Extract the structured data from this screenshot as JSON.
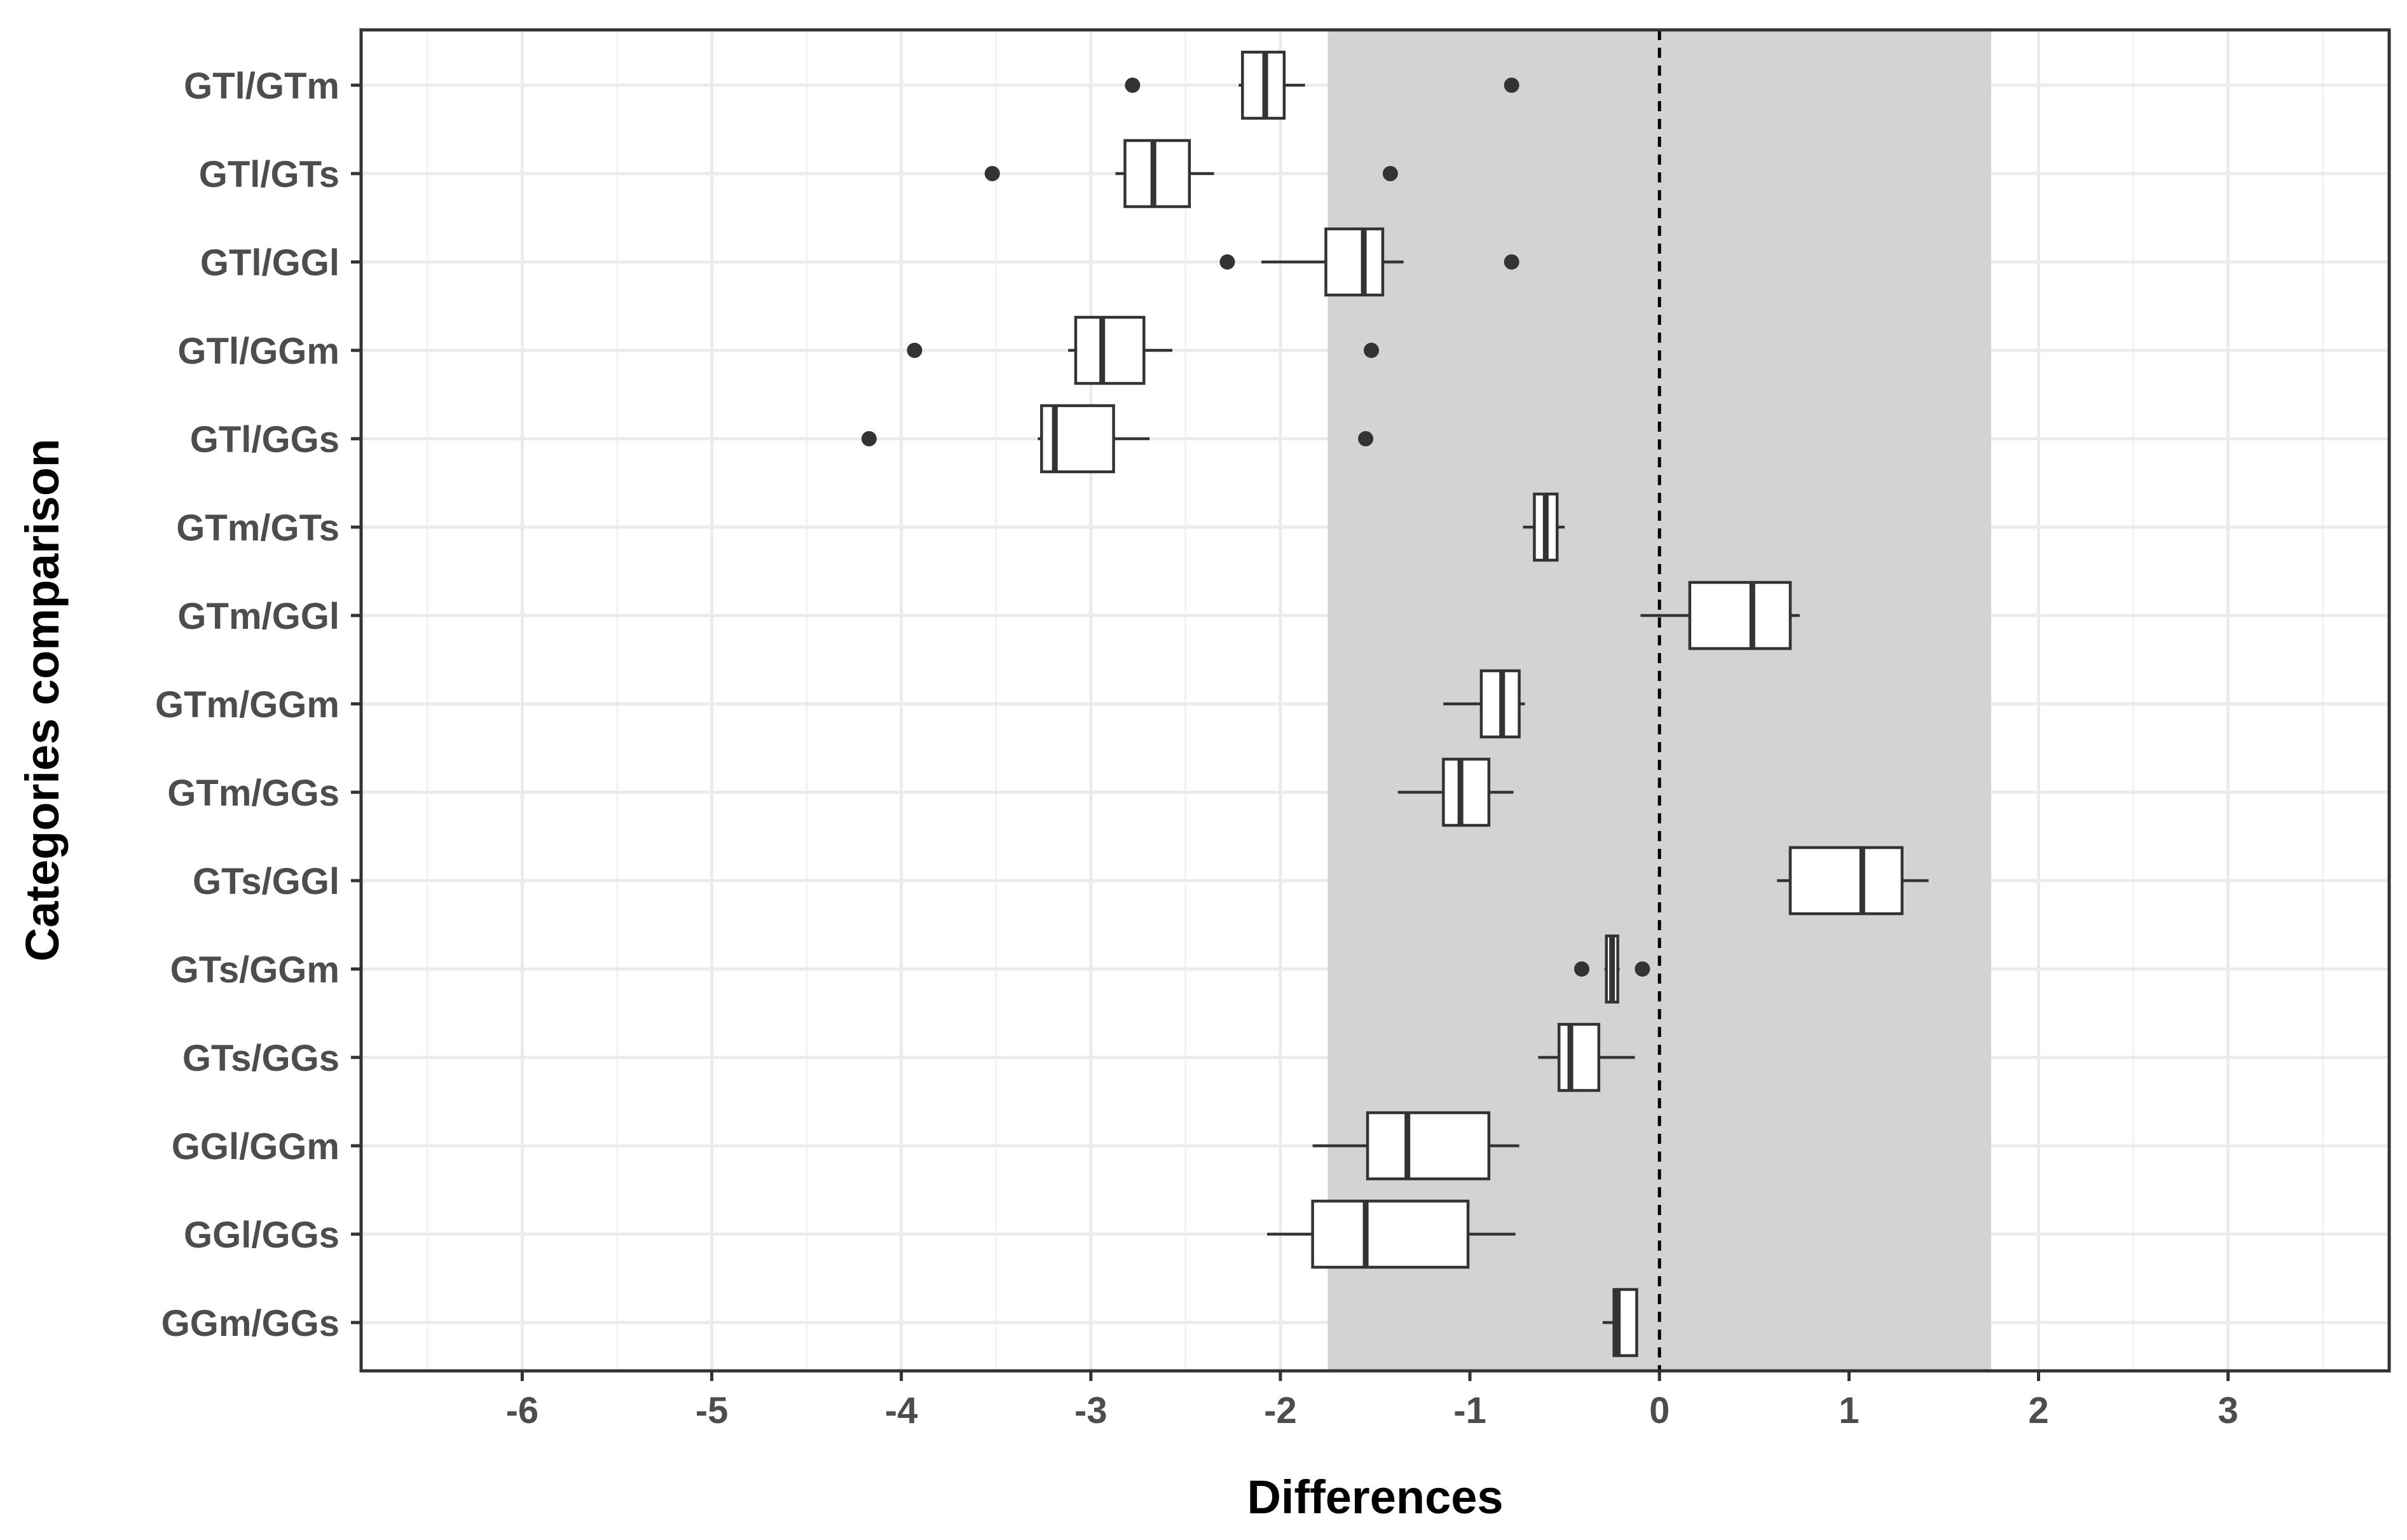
{
  "chart_data": {
    "type": "boxplot",
    "orientation": "horizontal",
    "xlabel": "Differences",
    "ylabel": "Categories comparison",
    "xlim": [
      -6.85,
      3.85
    ],
    "xticks": [
      -6,
      -5,
      -4,
      -3,
      -2,
      -1,
      0,
      1,
      2,
      3
    ],
    "grid": true,
    "shaded_region": {
      "from": -1.75,
      "to": 1.75,
      "color": "#d3d3d3"
    },
    "reference_line": {
      "x": 0,
      "style": "dashed"
    },
    "categories": [
      "GTl/GTm",
      "GTl/GTs",
      "GTl/GGl",
      "GTl/GGm",
      "GTl/GGs",
      "GTm/GTs",
      "GTm/GGl",
      "GTm/GGm",
      "GTm/GGs",
      "GTs/GGl",
      "GTs/GGm",
      "GTs/GGs",
      "GGl/GGm",
      "GGl/GGs",
      "GGm/GGs"
    ],
    "boxes": [
      {
        "label": "GTl/GTm",
        "whisker_low": -2.22,
        "q1": -2.2,
        "median": -2.08,
        "q3": -1.98,
        "whisker_high": -1.87,
        "outliers": [
          -2.78,
          -0.78
        ]
      },
      {
        "label": "GTl/GTs",
        "whisker_low": -2.87,
        "q1": -2.82,
        "median": -2.67,
        "q3": -2.48,
        "whisker_high": -2.35,
        "outliers": [
          -3.52,
          -1.42
        ]
      },
      {
        "label": "GTl/GGl",
        "whisker_low": -2.1,
        "q1": -1.76,
        "median": -1.56,
        "q3": -1.46,
        "whisker_high": -1.35,
        "outliers": [
          -2.28,
          -0.78
        ]
      },
      {
        "label": "GTl/GGm",
        "whisker_low": -3.12,
        "q1": -3.08,
        "median": -2.94,
        "q3": -2.72,
        "whisker_high": -2.57,
        "outliers": [
          -3.93,
          -1.52
        ]
      },
      {
        "label": "GTl/GGs",
        "whisker_low": -3.28,
        "q1": -3.26,
        "median": -3.19,
        "q3": -2.88,
        "whisker_high": -2.69,
        "outliers": [
          -4.17,
          -1.55
        ]
      },
      {
        "label": "GTm/GTs",
        "whisker_low": -0.72,
        "q1": -0.66,
        "median": -0.6,
        "q3": -0.54,
        "whisker_high": -0.5,
        "outliers": []
      },
      {
        "label": "GTm/GGl",
        "whisker_low": -0.1,
        "q1": 0.16,
        "median": 0.49,
        "q3": 0.69,
        "whisker_high": 0.74,
        "outliers": []
      },
      {
        "label": "GTm/GGm",
        "whisker_low": -1.14,
        "q1": -0.94,
        "median": -0.83,
        "q3": -0.74,
        "whisker_high": -0.71,
        "outliers": []
      },
      {
        "label": "GTm/GGs",
        "whisker_low": -1.38,
        "q1": -1.14,
        "median": -1.05,
        "q3": -0.9,
        "whisker_high": -0.77,
        "outliers": []
      },
      {
        "label": "GTs/GGl",
        "whisker_low": 0.62,
        "q1": 0.69,
        "median": 1.07,
        "q3": 1.28,
        "whisker_high": 1.42,
        "outliers": []
      },
      {
        "label": "GTs/GGm",
        "whisker_low": -0.29,
        "q1": -0.28,
        "median": -0.25,
        "q3": -0.22,
        "whisker_high": -0.21,
        "outliers": [
          -0.41,
          -0.09
        ]
      },
      {
        "label": "GTs/GGs",
        "whisker_low": -0.64,
        "q1": -0.53,
        "median": -0.47,
        "q3": -0.32,
        "whisker_high": -0.13,
        "outliers": []
      },
      {
        "label": "GGl/GGm",
        "whisker_low": -1.83,
        "q1": -1.54,
        "median": -1.33,
        "q3": -0.9,
        "whisker_high": -0.74,
        "outliers": []
      },
      {
        "label": "GGl/GGs",
        "whisker_low": -2.07,
        "q1": -1.83,
        "median": -1.55,
        "q3": -1.01,
        "whisker_high": -0.76,
        "outliers": []
      },
      {
        "label": "GGm/GGs",
        "whisker_low": -0.3,
        "q1": -0.24,
        "median": -0.22,
        "q3": -0.12,
        "whisker_high": -0.12,
        "outliers": []
      }
    ]
  }
}
